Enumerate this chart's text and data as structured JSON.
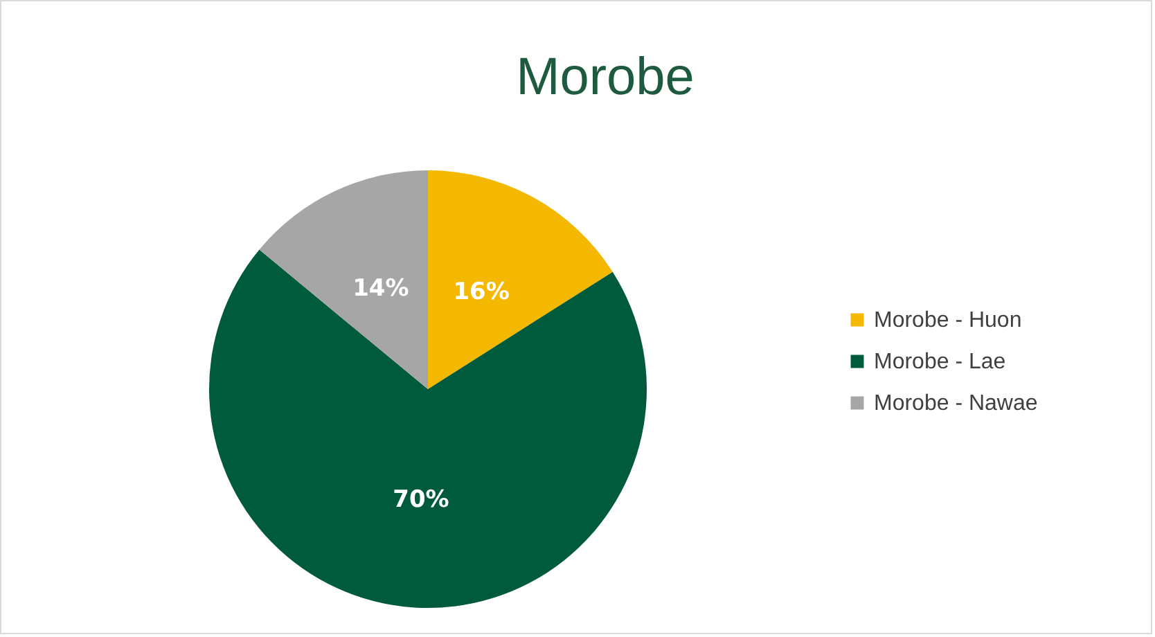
{
  "chart_data": {
    "type": "pie",
    "title": "Morobe",
    "categories": [
      "Morobe - Huon",
      "Morobe - Lae",
      "Morobe - Nawae"
    ],
    "values": [
      16,
      70,
      14
    ],
    "colors": [
      "#f5b800",
      "#005a3c",
      "#a6a6a6"
    ],
    "value_labels": [
      "16%",
      "70%",
      "14%"
    ],
    "legend": "right"
  }
}
